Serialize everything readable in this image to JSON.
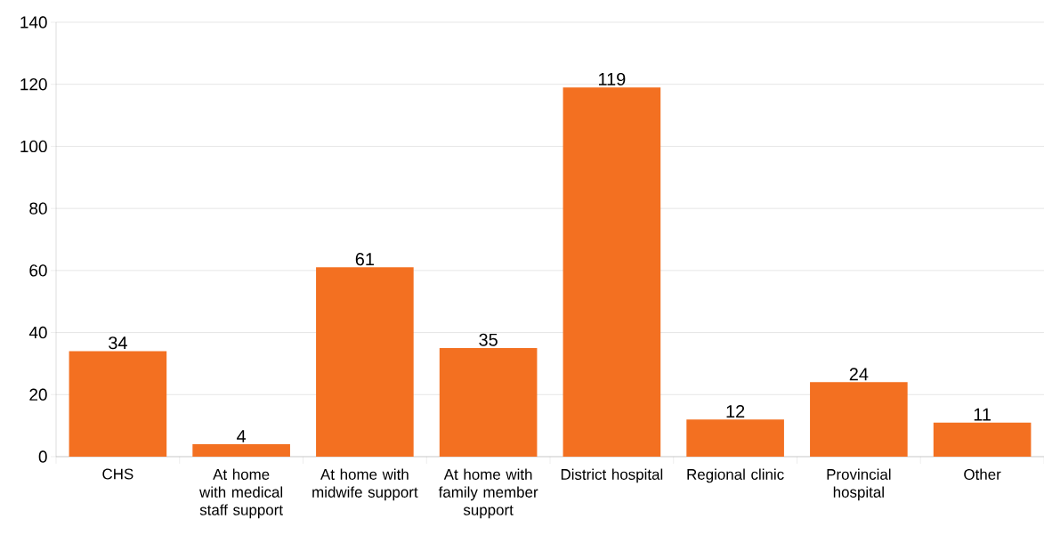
{
  "chart_data": {
    "type": "bar",
    "categories": [
      "CHS",
      "At home with medical staff support",
      "At home with midwife support",
      "At home with family member support",
      "District hospital",
      "Regional clinic",
      "Provincial hospital",
      "Other"
    ],
    "values": [
      34,
      4,
      61,
      35,
      119,
      12,
      24,
      11
    ],
    "color": "#f37021",
    "ylim": [
      0,
      140
    ],
    "yticks": [
      0,
      20,
      40,
      60,
      80,
      100,
      120,
      140
    ],
    "grid": "y",
    "data_labels": true
  }
}
